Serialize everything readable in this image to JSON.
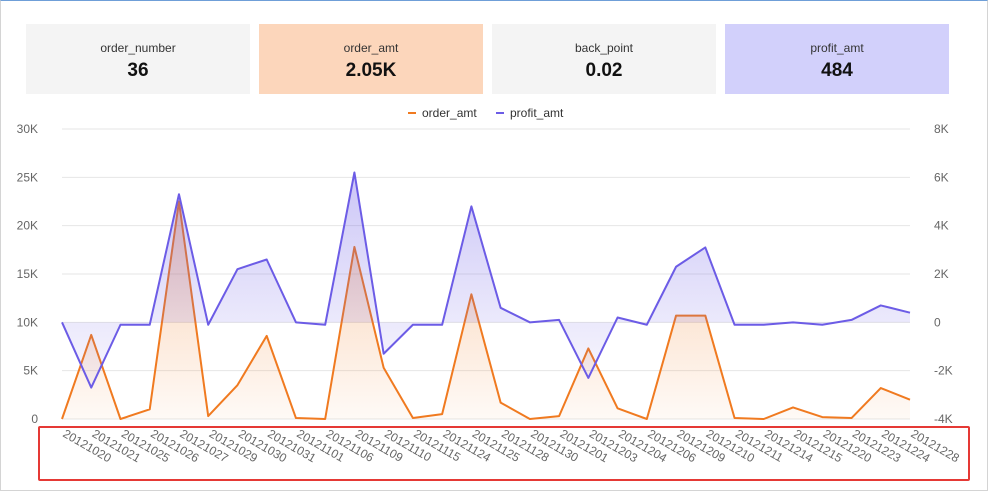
{
  "kpis": [
    {
      "label": "order_number",
      "value": "36",
      "bg": "#f4f4f4"
    },
    {
      "label": "order_amt",
      "value": "2.05K",
      "bg": "#fcd6bb"
    },
    {
      "label": "back_point",
      "value": "0.02",
      "bg": "#f4f4f4"
    },
    {
      "label": "profit_amt",
      "value": "484",
      "bg": "#d2d0fb"
    }
  ],
  "colors": {
    "order_amt": "#f07a20",
    "profit_amt": "#6c5ce6",
    "grid": "#e6e6e6",
    "axis_text": "#666666",
    "highlight": "#e53935"
  },
  "chart_data": {
    "type": "line",
    "title": "",
    "categories": [
      "20121020",
      "20121021",
      "20121025",
      "20121026",
      "20121027",
      "20121029",
      "20121030",
      "20121031",
      "20121101",
      "20121106",
      "20121109",
      "20121110",
      "20121115",
      "20121124",
      "20121125",
      "20121128",
      "20121130",
      "20121201",
      "20121203",
      "20121204",
      "20121206",
      "20121209",
      "20121210",
      "20121211",
      "20121214",
      "20121215",
      "20121220",
      "20121223",
      "20121224",
      "20121228"
    ],
    "series": [
      {
        "name": "order_amt",
        "axis": "left",
        "area": true,
        "values": [
          0,
          8700,
          0,
          1000,
          22500,
          300,
          3500,
          8600,
          100,
          0,
          17800,
          5300,
          100,
          500,
          12900,
          1700,
          0,
          300,
          7300,
          1100,
          0,
          10700,
          10700,
          100,
          0,
          1200,
          200,
          100,
          3200,
          2000
        ]
      },
      {
        "name": "profit_amt",
        "axis": "right",
        "area": true,
        "values": [
          0,
          -2700,
          -100,
          -100,
          5300,
          -100,
          2200,
          2600,
          0,
          -100,
          6200,
          -1300,
          -100,
          -100,
          4800,
          600,
          0,
          100,
          -2300,
          200,
          -100,
          2300,
          3100,
          -100,
          -100,
          0,
          -100,
          100,
          700,
          400
        ]
      }
    ],
    "y_left": {
      "min": 0,
      "max": 30000,
      "ticks": [
        0,
        5000,
        10000,
        15000,
        20000,
        25000,
        30000
      ],
      "tick_labels": [
        "0",
        "5K",
        "10K",
        "15K",
        "20K",
        "25K",
        "30K"
      ]
    },
    "y_right": {
      "min": -4000,
      "max": 8000,
      "ticks": [
        -4000,
        -2000,
        0,
        2000,
        4000,
        6000,
        8000
      ],
      "tick_labels": [
        "-4K",
        "-2K",
        "0",
        "2K",
        "4K",
        "6K",
        "8K"
      ]
    },
    "legend": {
      "position": "top-center",
      "labels": [
        "order_amt",
        "profit_amt"
      ]
    },
    "xlabel": "",
    "ylabel": ""
  }
}
